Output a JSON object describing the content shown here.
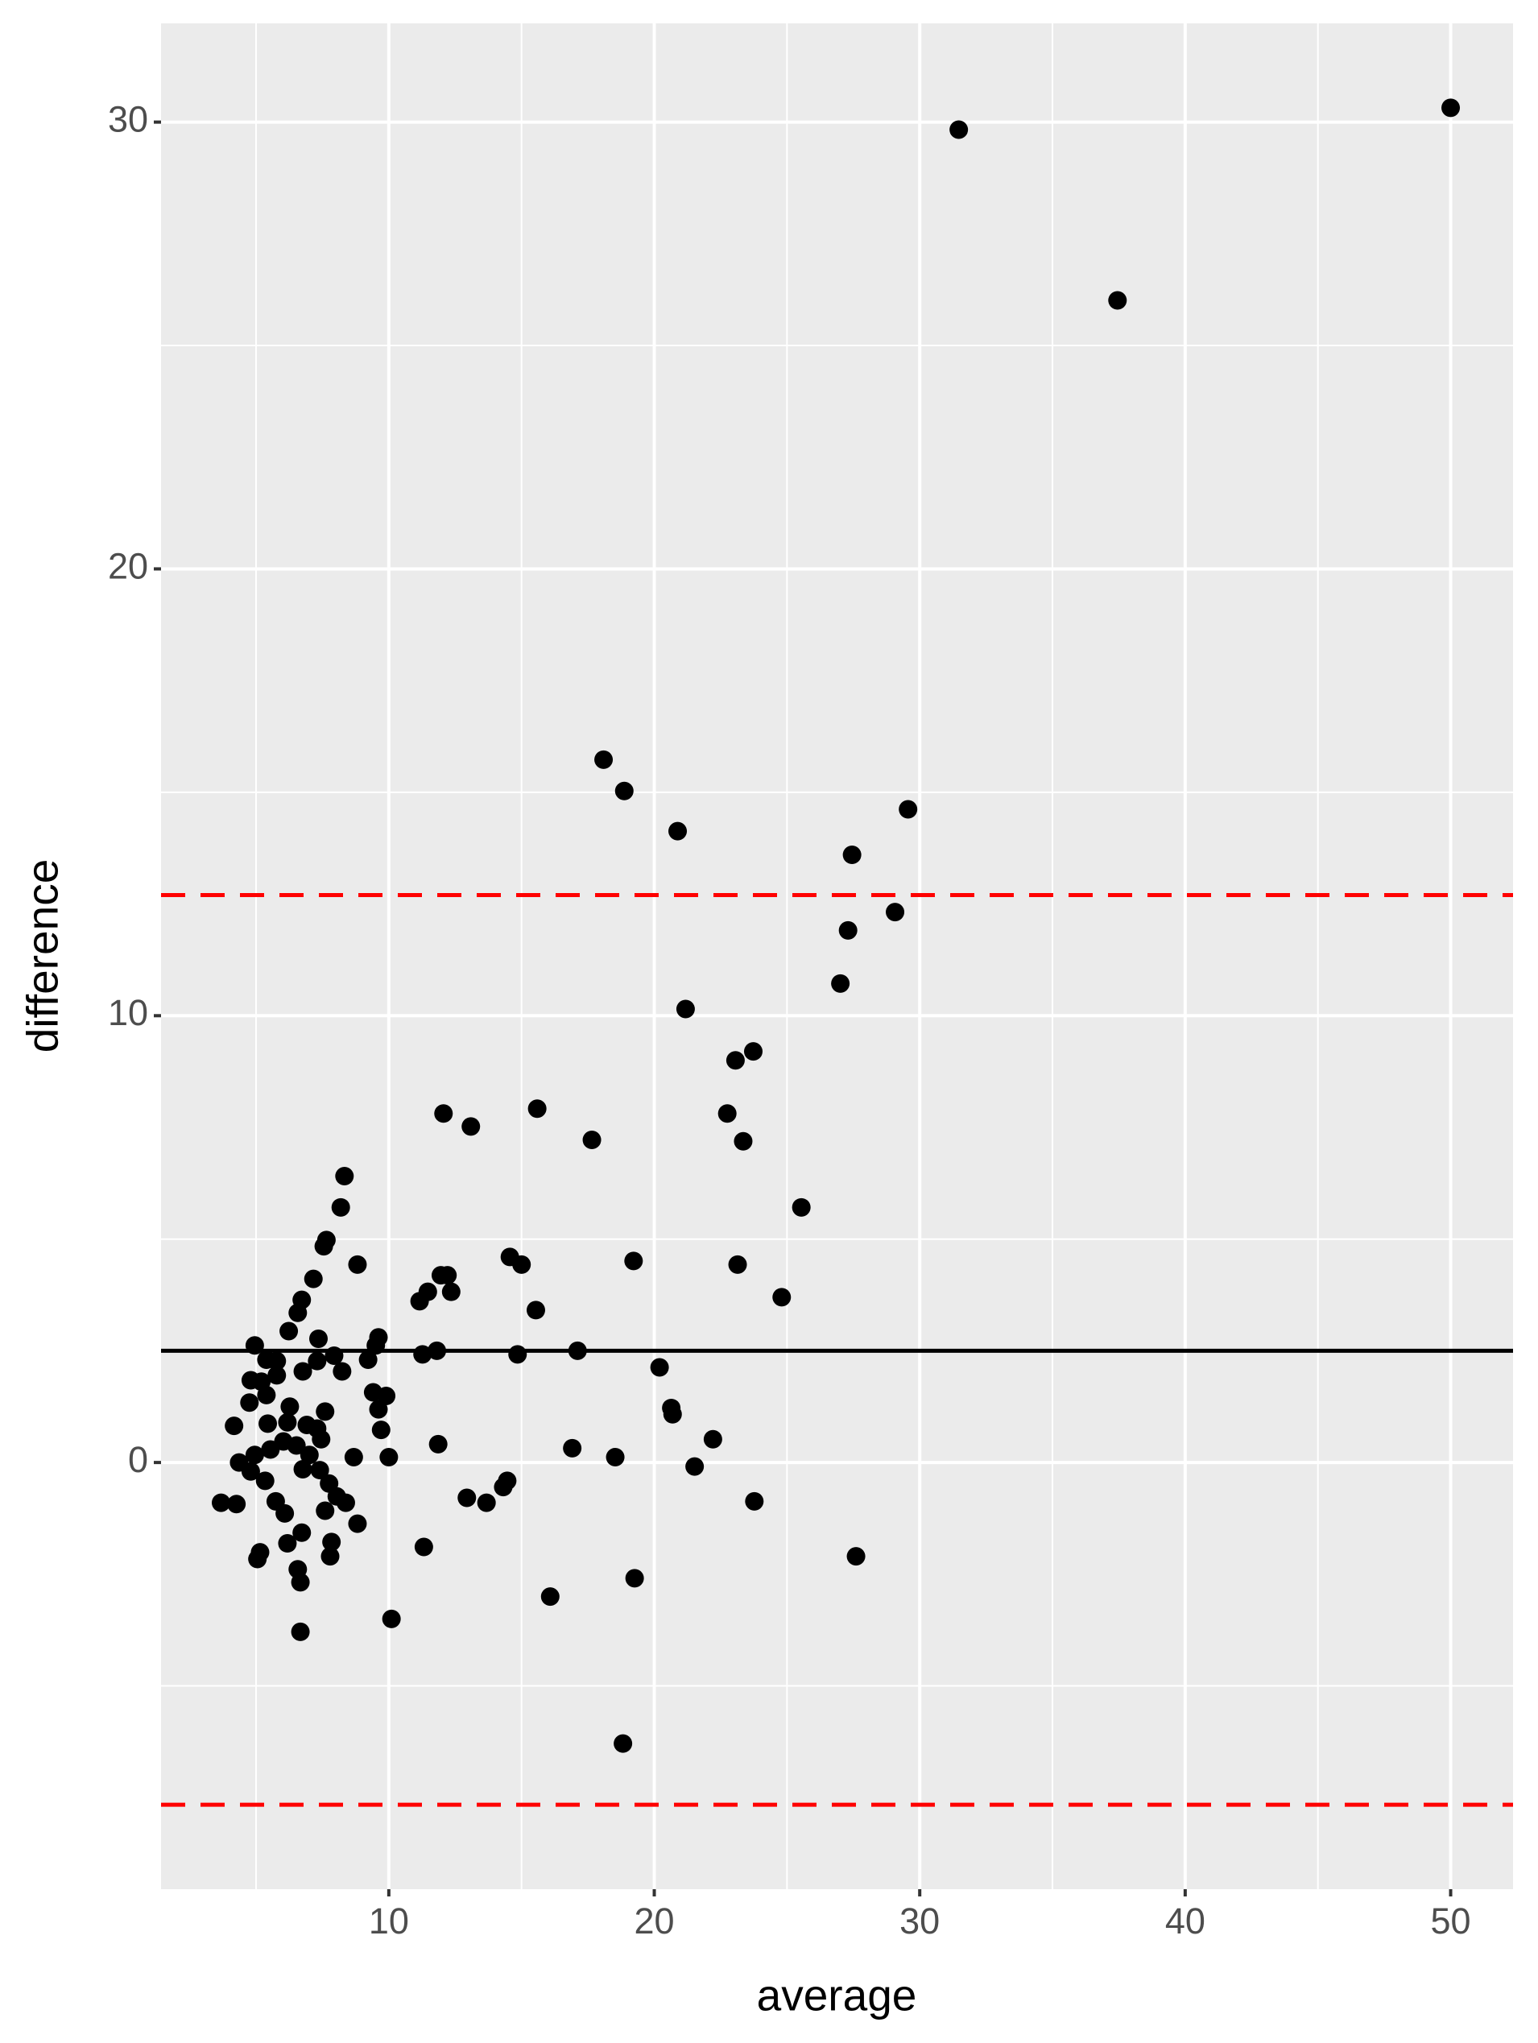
{
  "chart_data": {
    "type": "scatter",
    "x_label": "average",
    "y_label": "difference",
    "x": [
      31.47,
      50.0,
      37.45,
      18.09,
      18.87,
      20.88,
      29.56,
      27.45,
      27.3,
      29.07,
      27.01,
      21.18,
      23.73,
      23.06,
      22.75,
      23.35,
      12.06,
      13.09,
      15.59,
      17.65,
      25.54,
      8.33,
      8.19,
      7.65,
      7.55,
      8.82,
      7.16,
      6.72,
      6.57,
      6.23,
      23.14,
      24.8,
      14.56,
      15.0,
      19.22,
      15.54,
      11.96,
      12.21,
      11.47,
      12.35,
      11.16,
      11.81,
      11.27,
      14.85,
      17.11,
      20.2,
      9.61,
      9.51,
      9.22,
      8.24,
      7.94,
      7.3,
      7.35,
      6.76,
      5.78,
      5.39,
      4.95,
      4.8,
      5.2,
      5.78,
      9.41,
      9.9,
      9.61,
      4.75,
      5.39,
      6.27,
      7.6,
      4.17,
      5.44,
      6.18,
      6.91,
      7.3,
      9.71,
      20.64,
      20.69,
      22.21,
      16.91,
      11.86,
      10.0,
      8.68,
      18.53,
      21.52,
      4.36,
      4.95,
      5.54,
      6.03,
      6.52,
      7.01,
      7.45,
      4.8,
      5.34,
      6.76,
      7.4,
      7.75,
      8.04,
      8.38,
      3.68,
      4.26,
      5.74,
      6.08,
      7.6,
      8.82,
      12.94,
      13.68,
      14.31,
      14.46,
      23.77,
      6.72,
      6.18,
      7.84,
      11.32,
      5.15,
      5.05,
      7.79,
      27.6,
      6.57,
      6.67,
      19.26,
      16.08,
      10.1,
      6.67,
      18.82
    ],
    "series": [
      {
        "color": "#000000",
        "values": [
          29.83,
          30.32,
          26.01,
          15.73,
          15.03,
          14.13,
          14.62,
          13.6,
          11.91,
          12.32,
          10.72,
          10.15,
          9.2,
          9.0,
          7.81,
          7.19,
          7.81,
          7.52,
          7.92,
          7.22,
          5.71,
          6.41,
          5.71,
          4.98,
          4.84,
          4.43,
          4.11,
          3.64,
          3.35,
          2.94,
          4.43,
          3.7,
          4.6,
          4.43,
          4.51,
          3.41,
          4.19,
          4.19,
          3.82,
          3.82,
          3.61,
          2.5,
          2.42,
          2.42,
          2.5,
          2.13,
          2.8,
          2.62,
          2.3,
          2.04,
          2.39,
          2.27,
          2.77,
          2.04,
          2.27,
          2.3,
          2.62,
          1.84,
          1.81,
          1.95,
          1.57,
          1.49,
          1.19,
          1.34,
          1.51,
          1.25,
          1.14,
          0.82,
          0.87,
          0.9,
          0.84,
          0.76,
          0.73,
          1.22,
          1.08,
          0.52,
          0.32,
          0.41,
          0.12,
          0.12,
          0.12,
          -0.09,
          0.0,
          0.17,
          0.29,
          0.47,
          0.38,
          0.17,
          0.52,
          -0.2,
          -0.41,
          -0.15,
          -0.17,
          -0.47,
          -0.76,
          -0.9,
          -0.9,
          -0.93,
          -0.87,
          -1.14,
          -1.08,
          -1.37,
          -0.79,
          -0.9,
          -0.55,
          -0.41,
          -0.87,
          -1.57,
          -1.81,
          -1.78,
          -1.89,
          -2.01,
          -2.16,
          -2.1,
          -2.1,
          -2.39,
          -2.68,
          -2.59,
          -3.0,
          -3.5,
          -3.79,
          -6.29
        ]
      }
    ],
    "hlines": [
      {
        "y": 2.5,
        "color": "#000000",
        "style": "solid"
      },
      {
        "y": 12.7,
        "color": "#ff0000",
        "style": "dashed"
      },
      {
        "y": -7.66,
        "color": "#ff0000",
        "style": "dashed"
      }
    ],
    "xlim": [
      1.42,
      52.35
    ],
    "ylim": [
      -9.55,
      32.21
    ],
    "xticks": [
      10,
      20,
      30,
      40,
      50
    ],
    "yticks": [
      0,
      10,
      20,
      30
    ],
    "x_minor_grid": [
      5,
      15,
      25,
      35,
      45
    ],
    "y_minor_grid": [
      -5,
      5,
      15,
      25
    ],
    "grid": true
  }
}
